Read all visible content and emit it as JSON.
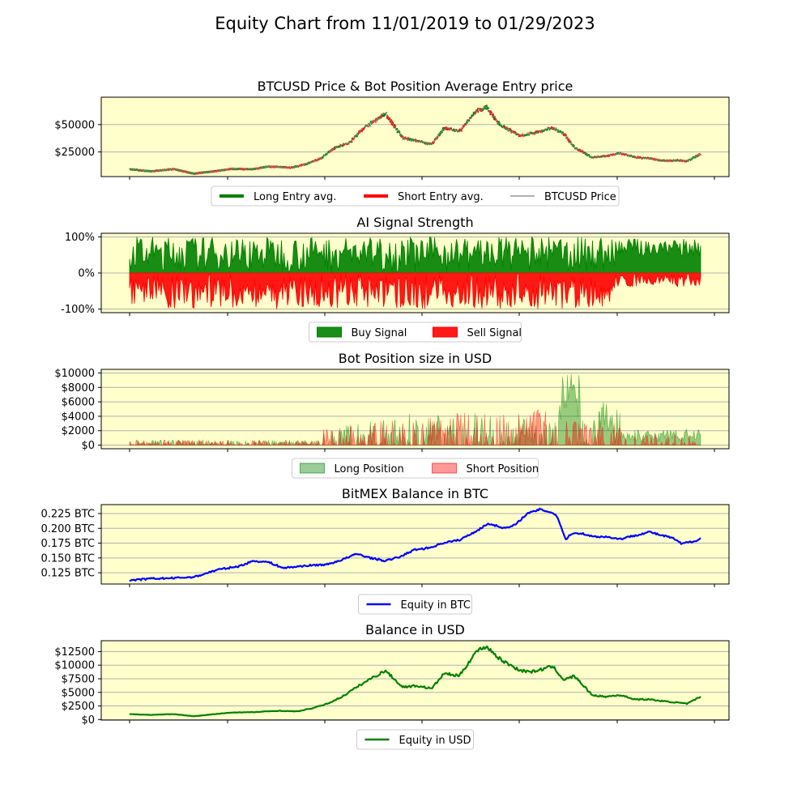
{
  "title": "Equity Chart from 11/01/2019 to 01/29/2023",
  "colors": {
    "panel_bg": "#ffffcc",
    "long": "#008000",
    "short": "#ff0000",
    "price": "#808080",
    "btc_equity": "#0000ff",
    "usd_equity": "#008000",
    "grid": "#b0b0b0"
  },
  "chart_data": [
    {
      "type": "line",
      "title": "BTCUSD Price & Bot Position Average Entry price",
      "x_range": [
        "2019-11-01",
        "2023-01-29"
      ],
      "yticks": [
        25000,
        50000
      ],
      "ytick_labels": [
        "$25000",
        "$50000"
      ],
      "ylim": [
        2500,
        75000
      ],
      "grid": "horizontal",
      "legend_position": "below",
      "legend": [
        "Long Entry avg.",
        "Short Entry avg.",
        "BTCUSD Price"
      ],
      "series": [
        {
          "name": "BTCUSD Price",
          "x": [
            "2019-11-01",
            "2019-12-15",
            "2020-02-01",
            "2020-03-13",
            "2020-04-15",
            "2020-06-01",
            "2020-07-15",
            "2020-08-15",
            "2020-10-01",
            "2020-11-01",
            "2020-12-01",
            "2021-01-01",
            "2021-02-01",
            "2021-03-01",
            "2021-04-15",
            "2021-05-20",
            "2021-06-20",
            "2021-07-20",
            "2021-08-15",
            "2021-09-15",
            "2021-10-20",
            "2021-11-10",
            "2021-12-10",
            "2022-01-20",
            "2022-02-15",
            "2022-03-28",
            "2022-04-20",
            "2022-05-12",
            "2022-06-18",
            "2022-07-15",
            "2022-08-15",
            "2022-09-15",
            "2022-10-15",
            "2022-11-09",
            "2022-12-15",
            "2023-01-01",
            "2023-01-29"
          ],
          "values": [
            9200,
            7300,
            9300,
            5200,
            6800,
            9500,
            9200,
            11700,
            10600,
            13800,
            19000,
            29000,
            34000,
            47000,
            60000,
            38000,
            35000,
            32000,
            47000,
            43500,
            62000,
            66000,
            49000,
            40000,
            42000,
            47000,
            41500,
            29000,
            20000,
            21000,
            24000,
            20000,
            19200,
            17000,
            17300,
            16600,
            23000
          ]
        },
        {
          "name": "Long Entry avg.",
          "x": [
            "2019-11-01",
            "2020-01-15",
            "2020-04-15",
            "2020-07-15",
            "2020-10-01",
            "2020-12-01",
            "2021-01-15",
            "2021-03-01",
            "2021-04-15",
            "2021-06-01",
            "2021-08-15",
            "2021-10-20",
            "2021-12-10",
            "2022-02-15",
            "2022-04-01",
            "2022-06-20",
            "2022-09-15",
            "2022-11-09",
            "2023-01-29"
          ],
          "values": [
            9000,
            8000,
            7000,
            9300,
            10700,
            18500,
            33000,
            48000,
            57000,
            36000,
            46000,
            60000,
            48000,
            41000,
            45000,
            21000,
            20000,
            17000,
            22500
          ]
        },
        {
          "name": "Short Entry avg.",
          "x": [
            "2019-11-15",
            "2020-02-15",
            "2020-05-15",
            "2020-09-01",
            "2021-02-01",
            "2021-04-01",
            "2021-05-20",
            "2021-07-20",
            "2021-11-10",
            "2022-01-20",
            "2022-05-12",
            "2022-06-18",
            "2022-12-15"
          ],
          "values": [
            8700,
            9200,
            8900,
            11300,
            36000,
            57000,
            40000,
            31000,
            64000,
            38000,
            30000,
            21500,
            16800
          ]
        }
      ]
    },
    {
      "type": "area",
      "title": "AI Signal Strength",
      "x_range": [
        "2019-11-01",
        "2023-01-29"
      ],
      "yticks": [
        -1,
        0,
        1
      ],
      "ytick_labels": [
        "-100%",
        "0%",
        "100%"
      ],
      "ylim": [
        -1.1,
        1.1
      ],
      "grid": "horizontal",
      "legend_position": "below",
      "legend": [
        "Buy Signal",
        "Sell Signal"
      ],
      "series": [
        {
          "name": "Buy Signal",
          "range": [
            0,
            1
          ]
        },
        {
          "name": "Sell Signal",
          "range": [
            -1,
            0
          ]
        }
      ]
    },
    {
      "type": "area",
      "title": "Bot Position size in USD",
      "x_range": [
        "2019-11-01",
        "2023-01-29"
      ],
      "yticks": [
        0,
        2000,
        4000,
        6000,
        8000,
        10000
      ],
      "ytick_labels": [
        "$0",
        "$2000",
        "$4000",
        "$6000",
        "$8000",
        "$10000"
      ],
      "ylim": [
        -500,
        10500
      ],
      "grid": "horizontal",
      "legend_position": "below",
      "legend": [
        "Long Position",
        "Short Position"
      ],
      "series": [
        {
          "name": "Long Position",
          "peak": 10000
        },
        {
          "name": "Short Position",
          "peak": 5000
        }
      ]
    },
    {
      "type": "line",
      "title": "BitMEX Balance in BTC",
      "x_range": [
        "2019-11-01",
        "2023-01-29"
      ],
      "yticks": [
        0.125,
        0.15,
        0.175,
        0.2,
        0.225
      ],
      "ytick_labels": [
        "0.125 BTC",
        "0.150 BTC",
        "0.175 BTC",
        "0.200 BTC",
        "0.225 BTC"
      ],
      "ylim": [
        0.106,
        0.24
      ],
      "grid": "horizontal",
      "legend_position": "below",
      "legend": [
        "Equity in BTC"
      ],
      "series": [
        {
          "name": "Equity in BTC",
          "x": [
            "2019-11-01",
            "2019-12-15",
            "2020-02-01",
            "2020-03-15",
            "2020-05-01",
            "2020-06-15",
            "2020-07-15",
            "2020-08-15",
            "2020-09-15",
            "2020-11-01",
            "2020-12-15",
            "2021-01-15",
            "2021-02-15",
            "2021-03-15",
            "2021-04-15",
            "2021-05-15",
            "2021-06-15",
            "2021-07-15",
            "2021-08-15",
            "2021-09-15",
            "2021-10-15",
            "2021-11-15",
            "2021-12-20",
            "2022-01-10",
            "2022-02-01",
            "2022-03-01",
            "2022-03-25",
            "2022-04-05",
            "2022-04-25",
            "2022-05-05",
            "2022-05-25",
            "2022-06-20",
            "2022-07-15",
            "2022-08-15",
            "2022-09-15",
            "2022-10-15",
            "2022-11-09",
            "2022-12-01",
            "2022-12-20",
            "2023-01-15",
            "2023-01-29"
          ],
          "values": [
            0.112,
            0.115,
            0.116,
            0.118,
            0.13,
            0.136,
            0.145,
            0.143,
            0.133,
            0.137,
            0.139,
            0.147,
            0.157,
            0.15,
            0.145,
            0.152,
            0.164,
            0.167,
            0.176,
            0.18,
            0.193,
            0.208,
            0.2,
            0.206,
            0.224,
            0.232,
            0.227,
            0.222,
            0.18,
            0.191,
            0.192,
            0.186,
            0.186,
            0.182,
            0.188,
            0.194,
            0.188,
            0.184,
            0.174,
            0.178,
            0.183
          ]
        }
      ]
    },
    {
      "type": "line",
      "title": "Balance in USD",
      "x_range": [
        "2019-11-01",
        "2023-01-29"
      ],
      "yticks": [
        0,
        2500,
        5000,
        7500,
        10000,
        12500
      ],
      "ytick_labels": [
        "$0",
        "$2500",
        "$5000",
        "$7500",
        "$10000",
        "$12500"
      ],
      "ylim": [
        -100,
        14500
      ],
      "grid": "horizontal",
      "legend_position": "below",
      "legend": [
        "Equity in USD"
      ],
      "series": [
        {
          "name": "Equity in USD",
          "x": [
            "2019-11-01",
            "2019-12-15",
            "2020-02-01",
            "2020-03-13",
            "2020-04-15",
            "2020-06-01",
            "2020-07-15",
            "2020-09-01",
            "2020-10-15",
            "2020-11-15",
            "2020-12-15",
            "2021-01-15",
            "2021-02-15",
            "2021-03-15",
            "2021-04-15",
            "2021-05-20",
            "2021-06-20",
            "2021-07-20",
            "2021-08-15",
            "2021-09-15",
            "2021-10-20",
            "2021-11-10",
            "2021-12-10",
            "2022-01-20",
            "2022-02-15",
            "2022-03-28",
            "2022-04-20",
            "2022-05-12",
            "2022-06-18",
            "2022-07-15",
            "2022-08-15",
            "2022-09-15",
            "2022-10-15",
            "2022-11-09",
            "2022-12-15",
            "2023-01-01",
            "2023-01-29"
          ],
          "values": [
            1000,
            850,
            1000,
            600,
            900,
            1300,
            1350,
            1600,
            1500,
            2100,
            2900,
            4200,
            6000,
            7500,
            9000,
            6000,
            6200,
            5700,
            8500,
            8000,
            12500,
            13500,
            11000,
            9000,
            8800,
            9800,
            7300,
            8000,
            4500,
            4200,
            4500,
            3700,
            3700,
            3400,
            3100,
            2900,
            4200
          ]
        }
      ]
    }
  ]
}
